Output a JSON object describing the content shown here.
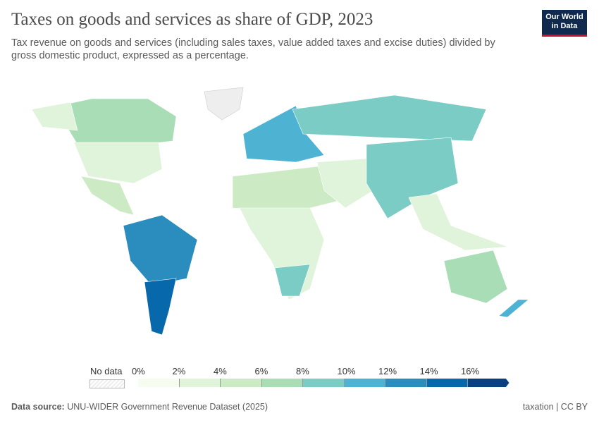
{
  "header": {
    "title": "Taxes on goods and services as share of GDP, 2023",
    "subtitle": "Tax revenue on goods and services (including sales taxes, value added taxes and excise duties) divided by gross domestic product, expressed as a percentage.",
    "logo": {
      "line1": "Our World",
      "line2": "in Data",
      "bg": "#0f2a4e",
      "accent": "#c8102e"
    }
  },
  "legend": {
    "no_data_label": "No data",
    "ticks": [
      "0%",
      "2%",
      "4%",
      "6%",
      "8%",
      "10%",
      "12%",
      "14%",
      "16%"
    ],
    "colors": [
      "#f7fcf0",
      "#e0f3db",
      "#ccebc5",
      "#a8ddb5",
      "#7bccc4",
      "#4eb3d3",
      "#2b8cbe",
      "#0868ac",
      "#084081"
    ]
  },
  "footer": {
    "source_label": "Data source:",
    "source": "UNU-WIDER Government Revenue Dataset (2025)",
    "right": "taxation | CC BY"
  }
}
